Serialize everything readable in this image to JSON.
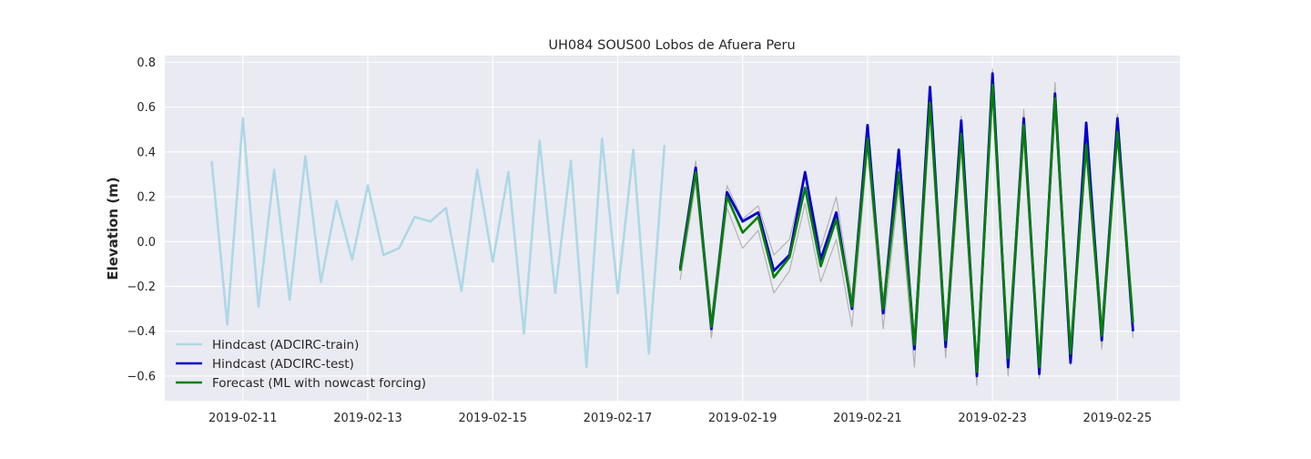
{
  "chart_data": {
    "type": "line",
    "title": "UH084 SOUS00 Lobos de Afuera Peru",
    "xlabel": "",
    "ylabel": "Elevation (m)",
    "xlim": [
      "2019-02-09 18:00",
      "2019-02-26 00:00"
    ],
    "ylim": [
      -0.71,
      0.83
    ],
    "x_ticks": [
      "2019-02-11",
      "2019-02-13",
      "2019-02-15",
      "2019-02-17",
      "2019-02-19",
      "2019-02-21",
      "2019-02-23",
      "2019-02-25"
    ],
    "y_ticks": [
      -0.6,
      -0.4,
      -0.2,
      0.0,
      0.2,
      0.4,
      0.6,
      0.8
    ],
    "y_tick_labels": [
      "−0.6",
      "−0.4",
      "−0.2",
      "0.0",
      "0.2",
      "0.4",
      "0.6",
      "0.8"
    ],
    "grid": true,
    "legend_position": "lower-left",
    "series": [
      {
        "name": "Hindcast (ADCIRC-train)",
        "color": "#add8e6",
        "x": [
          "2019-02-10 12:00",
          "2019-02-10 18:00",
          "2019-02-11 00:00",
          "2019-02-11 06:00",
          "2019-02-11 12:00",
          "2019-02-11 18:00",
          "2019-02-12 00:00",
          "2019-02-12 06:00",
          "2019-02-12 12:00",
          "2019-02-12 18:00",
          "2019-02-13 00:00",
          "2019-02-13 06:00",
          "2019-02-13 12:00",
          "2019-02-13 18:00",
          "2019-02-14 00:00",
          "2019-02-14 06:00",
          "2019-02-14 12:00",
          "2019-02-14 18:00",
          "2019-02-15 00:00",
          "2019-02-15 06:00",
          "2019-02-15 12:00",
          "2019-02-15 18:00",
          "2019-02-16 00:00",
          "2019-02-16 06:00",
          "2019-02-16 12:00",
          "2019-02-16 18:00",
          "2019-02-17 00:00",
          "2019-02-17 06:00",
          "2019-02-17 12:00",
          "2019-02-17 18:00"
        ],
        "values": [
          0.36,
          -0.37,
          0.55,
          -0.29,
          0.32,
          -0.26,
          0.38,
          -0.18,
          0.18,
          -0.08,
          0.25,
          -0.06,
          -0.03,
          0.11,
          0.09,
          0.15,
          -0.22,
          0.32,
          -0.09,
          0.31,
          -0.41,
          0.45,
          -0.23,
          0.36,
          -0.56,
          0.46,
          -0.23,
          0.41,
          -0.5,
          0.43
        ]
      },
      {
        "name": "Hindcast (ADCIRC-test)",
        "color": "#0000cd",
        "x": [
          "2019-02-18 00:00",
          "2019-02-18 06:00",
          "2019-02-18 12:00",
          "2019-02-18 18:00",
          "2019-02-19 00:00",
          "2019-02-19 06:00",
          "2019-02-19 12:00",
          "2019-02-19 18:00",
          "2019-02-20 00:00",
          "2019-02-20 06:00",
          "2019-02-20 12:00",
          "2019-02-20 18:00",
          "2019-02-21 00:00",
          "2019-02-21 06:00",
          "2019-02-21 12:00",
          "2019-02-21 18:00",
          "2019-02-22 00:00",
          "2019-02-22 06:00",
          "2019-02-22 12:00",
          "2019-02-22 18:00",
          "2019-02-23 00:00",
          "2019-02-23 06:00",
          "2019-02-23 12:00",
          "2019-02-23 18:00",
          "2019-02-24 00:00",
          "2019-02-24 06:00",
          "2019-02-24 12:00",
          "2019-02-24 18:00",
          "2019-02-25 00:00",
          "2019-02-25 06:00"
        ],
        "values": [
          -0.12,
          0.33,
          -0.39,
          0.22,
          0.09,
          0.13,
          -0.13,
          -0.06,
          0.31,
          -0.08,
          0.13,
          -0.3,
          0.52,
          -0.32,
          0.41,
          -0.48,
          0.69,
          -0.47,
          0.54,
          -0.6,
          0.75,
          -0.56,
          0.55,
          -0.59,
          0.66,
          -0.54,
          0.53,
          -0.44,
          0.55,
          -0.4
        ]
      },
      {
        "name": "Forecast (ML with nowcast forcing)",
        "color": "#008000",
        "x": [
          "2019-02-18 00:00",
          "2019-02-18 06:00",
          "2019-02-18 12:00",
          "2019-02-18 18:00",
          "2019-02-19 00:00",
          "2019-02-19 06:00",
          "2019-02-19 12:00",
          "2019-02-19 18:00",
          "2019-02-20 00:00",
          "2019-02-20 06:00",
          "2019-02-20 12:00",
          "2019-02-20 18:00",
          "2019-02-21 00:00",
          "2019-02-21 06:00",
          "2019-02-21 12:00",
          "2019-02-21 18:00",
          "2019-02-22 00:00",
          "2019-02-22 06:00",
          "2019-02-22 12:00",
          "2019-02-22 18:00",
          "2019-02-23 00:00",
          "2019-02-23 06:00",
          "2019-02-23 12:00",
          "2019-02-23 18:00",
          "2019-02-24 00:00",
          "2019-02-24 06:00",
          "2019-02-24 12:00",
          "2019-02-24 18:00",
          "2019-02-25 00:00",
          "2019-02-25 06:00"
        ],
        "values": [
          -0.13,
          0.31,
          -0.38,
          0.2,
          0.04,
          0.11,
          -0.16,
          -0.07,
          0.24,
          -0.11,
          0.1,
          -0.29,
          0.46,
          -0.3,
          0.31,
          -0.46,
          0.62,
          -0.44,
          0.48,
          -0.58,
          0.7,
          -0.52,
          0.52,
          -0.56,
          0.64,
          -0.5,
          0.43,
          -0.42,
          0.49,
          -0.36
        ]
      },
      {
        "color": "#a9a9a9",
        "band": "upper",
        "x": [
          "2019-02-18 00:00",
          "2019-02-18 06:00",
          "2019-02-18 12:00",
          "2019-02-18 18:00",
          "2019-02-19 00:00",
          "2019-02-19 06:00",
          "2019-02-19 12:00",
          "2019-02-19 18:00",
          "2019-02-20 00:00",
          "2019-02-20 06:00",
          "2019-02-20 12:00",
          "2019-02-20 18:00",
          "2019-02-21 00:00",
          "2019-02-21 06:00",
          "2019-02-21 12:00",
          "2019-02-21 18:00",
          "2019-02-22 00:00",
          "2019-02-22 06:00",
          "2019-02-22 12:00",
          "2019-02-22 18:00",
          "2019-02-23 00:00",
          "2019-02-23 06:00",
          "2019-02-23 12:00",
          "2019-02-23 18:00",
          "2019-02-24 00:00",
          "2019-02-24 06:00",
          "2019-02-24 12:00",
          "2019-02-24 18:00",
          "2019-02-25 00:00",
          "2019-02-25 06:00"
        ],
        "values": [
          -0.09,
          0.36,
          -0.34,
          0.25,
          0.1,
          0.16,
          -0.06,
          0.01,
          0.31,
          -0.03,
          0.2,
          -0.25,
          0.52,
          -0.26,
          0.41,
          -0.42,
          0.69,
          -0.4,
          0.56,
          -0.54,
          0.77,
          -0.48,
          0.59,
          -0.52,
          0.71,
          -0.46,
          0.53,
          -0.36,
          0.57,
          -0.31
        ]
      },
      {
        "color": "#a9a9a9",
        "band": "lower",
        "x": [
          "2019-02-18 00:00",
          "2019-02-18 06:00",
          "2019-02-18 12:00",
          "2019-02-18 18:00",
          "2019-02-19 00:00",
          "2019-02-19 06:00",
          "2019-02-19 12:00",
          "2019-02-19 18:00",
          "2019-02-20 00:00",
          "2019-02-20 06:00",
          "2019-02-20 12:00",
          "2019-02-20 18:00",
          "2019-02-21 00:00",
          "2019-02-21 06:00",
          "2019-02-21 12:00",
          "2019-02-21 18:00",
          "2019-02-22 00:00",
          "2019-02-22 06:00",
          "2019-02-22 12:00",
          "2019-02-22 18:00",
          "2019-02-23 00:00",
          "2019-02-23 06:00",
          "2019-02-23 12:00",
          "2019-02-23 18:00",
          "2019-02-24 00:00",
          "2019-02-24 06:00",
          "2019-02-24 12:00",
          "2019-02-24 18:00",
          "2019-02-25 00:00",
          "2019-02-25 06:00"
        ],
        "values": [
          -0.17,
          0.26,
          -0.43,
          0.15,
          -0.03,
          0.05,
          -0.23,
          -0.13,
          0.17,
          -0.18,
          0.01,
          -0.38,
          0.41,
          -0.39,
          0.24,
          -0.56,
          0.56,
          -0.52,
          0.41,
          -0.64,
          0.64,
          -0.6,
          0.45,
          -0.61,
          0.57,
          -0.55,
          0.39,
          -0.48,
          0.45,
          -0.43
        ]
      }
    ]
  }
}
